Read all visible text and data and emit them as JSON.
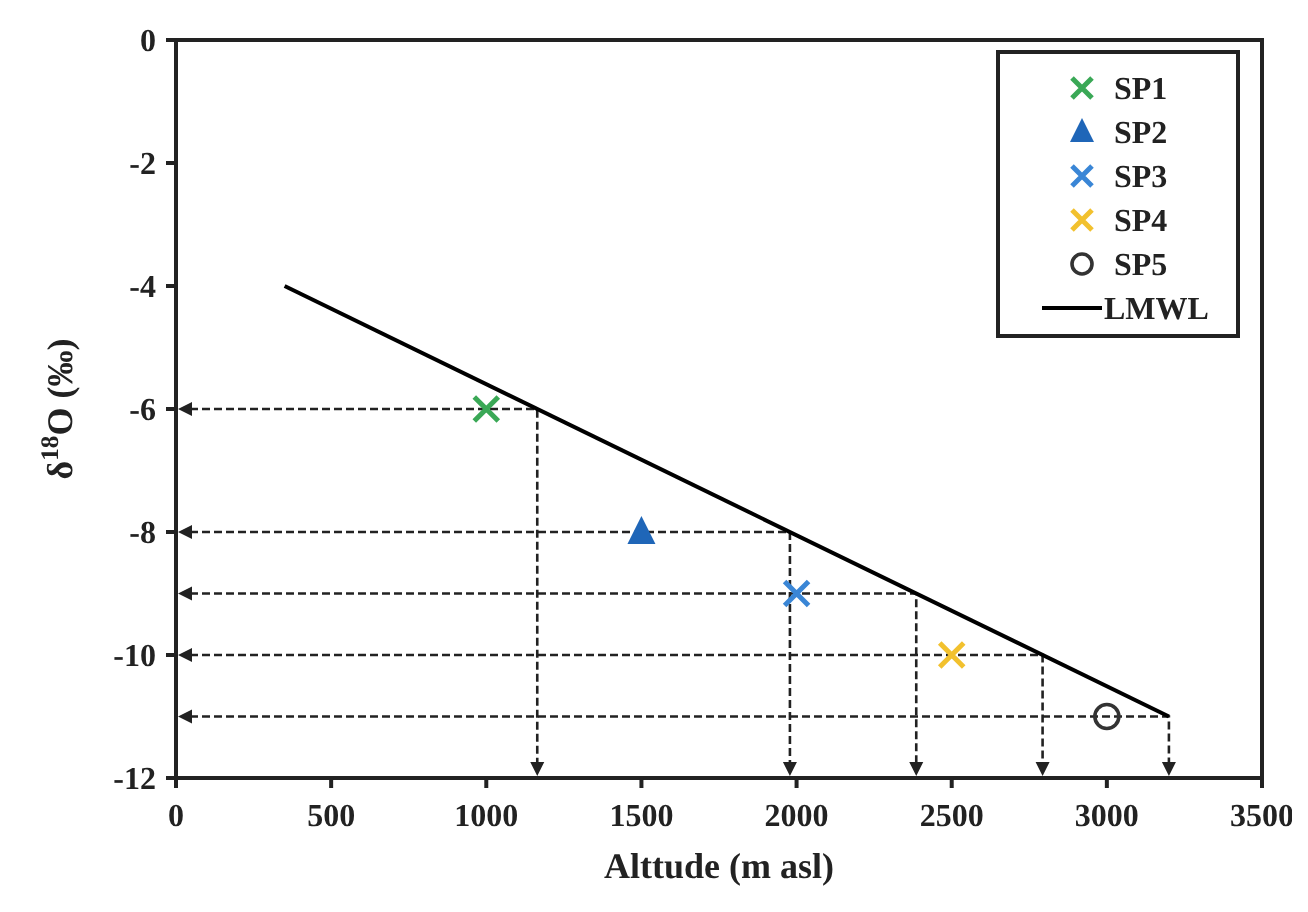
{
  "chart_data": {
    "type": "scatter",
    "xlabel": "Alttude (m asl)",
    "ylabel": "δ$^{18}$O (‰)",
    "xlim": [
      0,
      3500
    ],
    "xticks": [
      0,
      500,
      1000,
      1500,
      2000,
      2500,
      3000,
      3500
    ],
    "ylim": [
      -12,
      0
    ],
    "yticks": [
      -12,
      -10,
      -8,
      -6,
      -4,
      -2,
      0
    ],
    "grid": false,
    "legend": "top right",
    "series": [
      {
        "name": "SP1",
        "color": "#3aa856",
        "marker": "cross",
        "x": [
          1000
        ],
        "values": [
          -6
        ]
      },
      {
        "name": "SP2",
        "color": "#1f66b8",
        "marker": "triangle",
        "x": [
          1500
        ],
        "values": [
          -8
        ]
      },
      {
        "name": "SP3",
        "color": "#3a86d6",
        "marker": "cross",
        "x": [
          2000
        ],
        "values": [
          -9
        ]
      },
      {
        "name": "SP4",
        "color": "#f2c12e",
        "marker": "cross",
        "x": [
          2500
        ],
        "values": [
          -10
        ]
      },
      {
        "name": "SP5",
        "color": "#333333",
        "marker": "circle",
        "x": [
          3000
        ],
        "values": [
          -11
        ]
      },
      {
        "name": "LMWL",
        "type": "line",
        "color": "#000000",
        "marker": "none",
        "line_style": "solid",
        "x": [
          350,
          3200
        ],
        "values": [
          -4,
          -11
        ]
      }
    ]
  }
}
